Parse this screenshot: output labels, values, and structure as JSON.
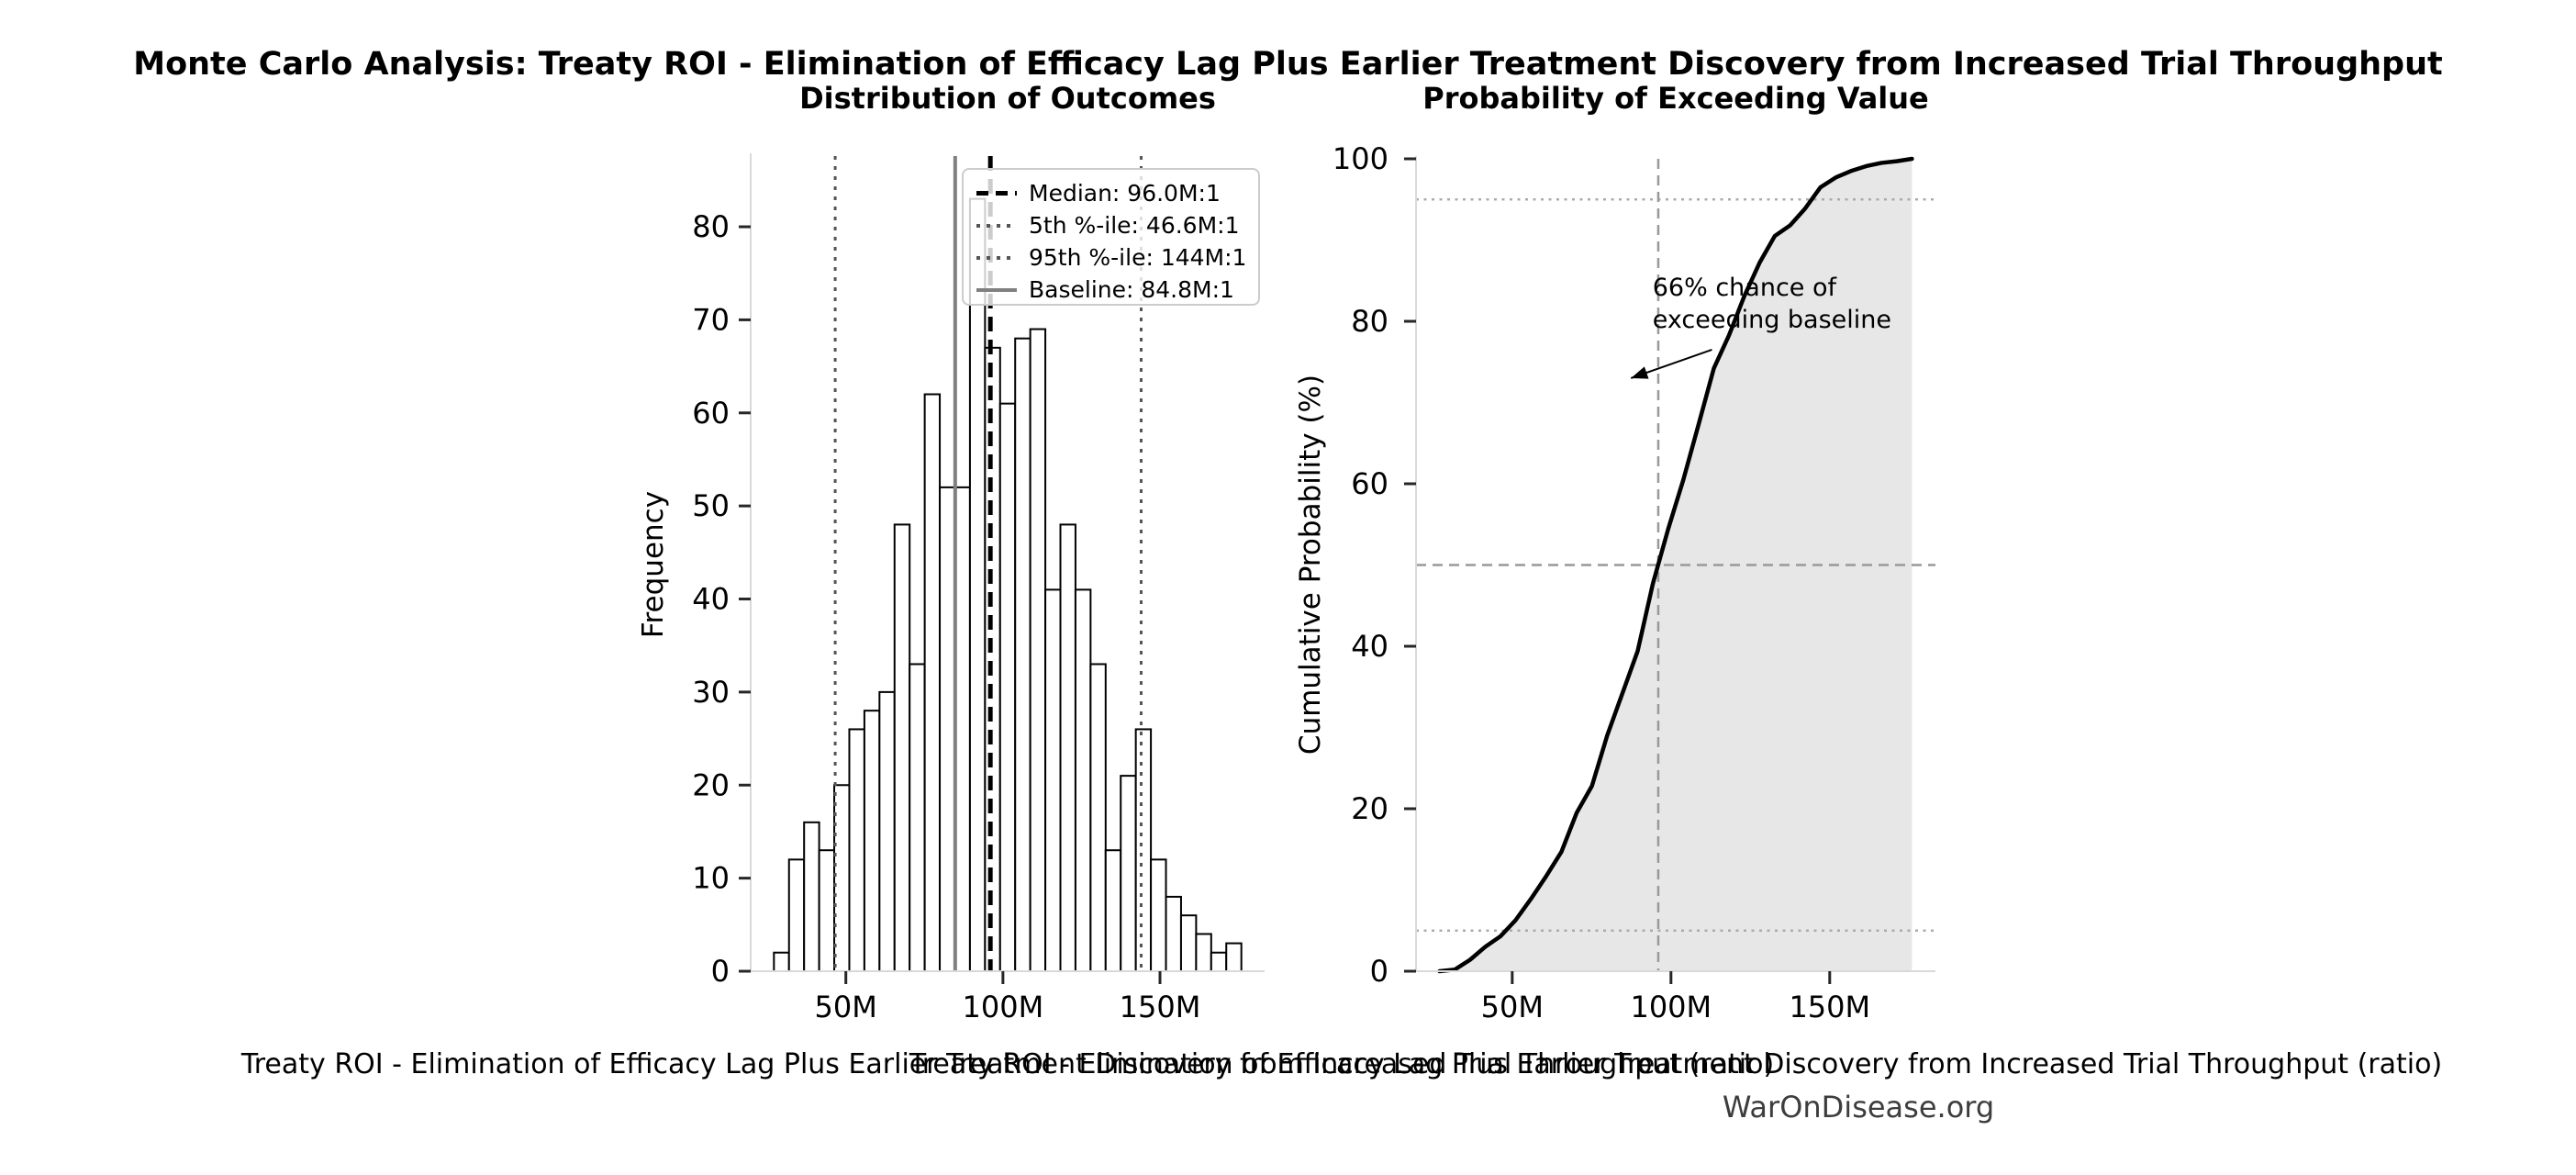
{
  "title": "Monte Carlo Analysis: Treaty ROI - Elimination of Efficacy Lag Plus Earlier Treatment Discovery from Increased Trial Throughput",
  "watermark": "WarOnDisease.org",
  "xlabel": "Treaty ROI - Elimination of Efficacy Lag Plus Earlier Treatment Discovery from Increased Trial Throughput (ratio)",
  "colors": {
    "bar_fill": "#ffffff",
    "bar_edge": "#000000",
    "median_line": "#000000",
    "percentile_line": "#555555",
    "baseline_line": "#808080",
    "cdf_line": "#000000",
    "cdf_fill": "#e7e7e7",
    "grid_dashed": "#999999",
    "grid_dotted": "#ababab",
    "spine": "#d9d9d9",
    "tick": "#262626",
    "watermark_text": "#3d3d3d"
  },
  "chart_data": [
    {
      "type": "bar",
      "title": "Distribution of Outcomes",
      "ylabel": "Frequency",
      "xlabel": "Treaty ROI - Elimination of Efficacy Lag Plus Earlier Treatment Discovery from Increased Trial Throughput (ratio)",
      "bin_start": 27.1,
      "bin_width": 4.8,
      "values": [
        2,
        12,
        16,
        13,
        20,
        26,
        28,
        30,
        48,
        33,
        62,
        52,
        52,
        83,
        67,
        61,
        68,
        69,
        41,
        48,
        41,
        33,
        13,
        21,
        26,
        12,
        8,
        6,
        4,
        2,
        3
      ],
      "xlim": [
        19.7,
        183.3
      ],
      "ylim": [
        0,
        87.6
      ],
      "yticks": [
        0,
        10,
        20,
        30,
        40,
        50,
        60,
        70,
        80
      ],
      "ytick_labels": [
        "0",
        "10",
        "20",
        "30",
        "40",
        "50",
        "60",
        "70",
        "80"
      ],
      "xtick_values": [
        50,
        100,
        150
      ],
      "xtick_labels": [
        "50M",
        "100M",
        "150M"
      ],
      "lines": [
        {
          "name": "median",
          "value": 96.0,
          "style": "median"
        },
        {
          "name": "percentile-5",
          "value": 46.6,
          "style": "pct"
        },
        {
          "name": "percentile-95",
          "value": 144.0,
          "style": "pct"
        },
        {
          "name": "baseline",
          "value": 84.8,
          "style": "baseline"
        }
      ],
      "legend": [
        {
          "label": "Median: 96.0M:1",
          "style": "median"
        },
        {
          "label": "5th %-ile: 46.6M:1",
          "style": "pct"
        },
        {
          "label": "95th %-ile: 144M:1",
          "style": "pct"
        },
        {
          "label": "Baseline: 84.8M:1",
          "style": "baseline"
        }
      ],
      "grid": false,
      "legend_position": "upper right"
    },
    {
      "type": "line",
      "title": "Probability of Exceeding Value",
      "ylabel": "Cumulative Probability (%)",
      "xlabel": "Treaty ROI - Elimination of Efficacy Lag Plus Earlier Treatment Discovery from Increased Trial Throughput (ratio)",
      "x": [
        27.1,
        31.9,
        36.7,
        41.5,
        46.3,
        51.1,
        55.9,
        60.7,
        65.5,
        70.3,
        75.1,
        79.9,
        84.7,
        89.5,
        94.3,
        99.1,
        103.9,
        108.7,
        113.5,
        118.3,
        123.1,
        127.9,
        132.7,
        137.5,
        142.3,
        147.1,
        151.9,
        156.7,
        161.5,
        166.3,
        171.1,
        175.9
      ],
      "y": [
        0,
        0.2,
        1.4,
        3.0,
        4.3,
        6.3,
        8.9,
        11.7,
        14.7,
        19.5,
        22.8,
        29.0,
        34.2,
        39.4,
        47.7,
        54.4,
        60.5,
        67.3,
        74.2,
        78.3,
        83.1,
        87.2,
        90.5,
        91.8,
        93.9,
        96.5,
        97.7,
        98.5,
        99.1,
        99.5,
        99.7,
        100
      ],
      "xlim": [
        19.7,
        183.3
      ],
      "ylim": [
        0,
        100
      ],
      "yticks": [
        0,
        20,
        40,
        60,
        80,
        100
      ],
      "ytick_labels": [
        "0",
        "20",
        "40",
        "60",
        "80",
        "100"
      ],
      "xtick_values": [
        50,
        100,
        150
      ],
      "xtick_labels": [
        "50M",
        "100M",
        "150M"
      ],
      "fill_under": true,
      "hlines": [
        {
          "value": 5,
          "style": "dotted"
        },
        {
          "value": 50,
          "style": "dashed"
        },
        {
          "value": 95,
          "style": "dotted"
        }
      ],
      "vlines": [
        {
          "value": 96,
          "style": "dashed"
        }
      ],
      "annotation": {
        "lines": [
          "66% chance of",
          "exceeding baseline"
        ],
        "text_xy": [
          94.2,
          85.5
        ],
        "arrow_start_xy": [
          112.9,
          76.5
        ],
        "arrow_tip_xy": [
          87.4,
          73.0
        ]
      }
    }
  ]
}
